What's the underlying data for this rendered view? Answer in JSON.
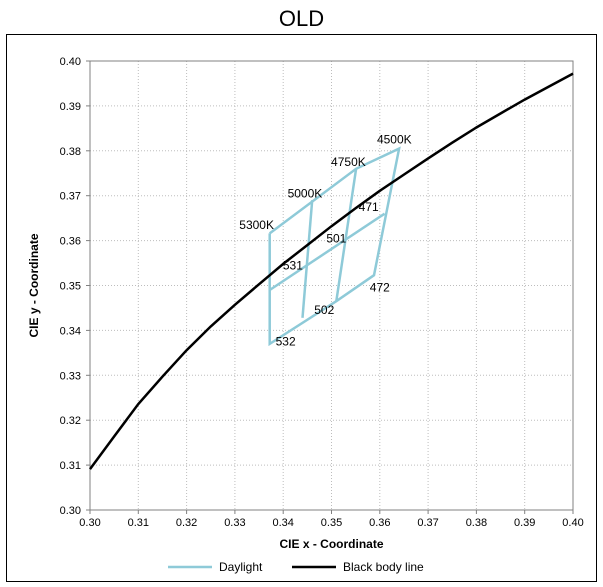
{
  "chart_data": {
    "type": "line",
    "title": "OLD",
    "xlabel": "CIE x - Coordinate",
    "ylabel": "CIE y - Coordinate",
    "xlim": [
      0.3,
      0.4
    ],
    "ylim": [
      0.3,
      0.4
    ],
    "xticks": [
      "0.30",
      "0.31",
      "0.32",
      "0.33",
      "0.34",
      "0.35",
      "0.36",
      "0.37",
      "0.38",
      "0.39",
      "0.40"
    ],
    "yticks": [
      "0.30",
      "0.31",
      "0.32",
      "0.33",
      "0.34",
      "0.35",
      "0.36",
      "0.37",
      "0.38",
      "0.39",
      "0.40"
    ],
    "grid": true,
    "legend_position": "bottom",
    "series": [
      {
        "name": "Daylight",
        "color": "#8ecad8",
        "segments": [
          [
            [
              0.3372,
              0.3616
            ],
            [
              0.3372,
              0.337
            ],
            [
              0.351,
              0.3465
            ],
            [
              0.3588,
              0.3523
            ],
            [
              0.364,
              0.3805
            ],
            [
              0.3551,
              0.376
            ],
            [
              0.3372,
              0.3616
            ]
          ],
          [
            [
              0.3372,
              0.349
            ],
            [
              0.361,
              0.366
            ]
          ],
          [
            [
              0.346,
              0.369
            ],
            [
              0.344,
              0.3428
            ]
          ],
          [
            [
              0.3551,
              0.376
            ],
            [
              0.351,
              0.3465
            ]
          ]
        ]
      },
      {
        "name": "Black body line",
        "color": "#000000",
        "x": [
          0.3,
          0.305,
          0.31,
          0.315,
          0.32,
          0.325,
          0.33,
          0.335,
          0.34,
          0.345,
          0.35,
          0.355,
          0.36,
          0.365,
          0.37,
          0.375,
          0.38,
          0.385,
          0.39,
          0.395,
          0.4
        ],
        "y": [
          0.3091,
          0.3164,
          0.3236,
          0.3297,
          0.3356,
          0.3409,
          0.3457,
          0.3503,
          0.3548,
          0.359,
          0.3632,
          0.3672,
          0.3711,
          0.3747,
          0.3783,
          0.3818,
          0.3852,
          0.3883,
          0.3914,
          0.3943,
          0.3972
        ]
      }
    ],
    "annotations": [
      {
        "text": "4500K",
        "x": 0.363,
        "y": 0.3825
      },
      {
        "text": "4750K",
        "x": 0.3535,
        "y": 0.3775
      },
      {
        "text": "5000K",
        "x": 0.3445,
        "y": 0.3705
      },
      {
        "text": "5300K",
        "x": 0.3345,
        "y": 0.3635
      },
      {
        "text": "471",
        "x": 0.3577,
        "y": 0.3675
      },
      {
        "text": "501",
        "x": 0.351,
        "y": 0.3605
      },
      {
        "text": "531",
        "x": 0.342,
        "y": 0.3545
      },
      {
        "text": "472",
        "x": 0.36,
        "y": 0.3495
      },
      {
        "text": "502",
        "x": 0.3485,
        "y": 0.3445
      },
      {
        "text": "532",
        "x": 0.3405,
        "y": 0.3375
      }
    ]
  }
}
